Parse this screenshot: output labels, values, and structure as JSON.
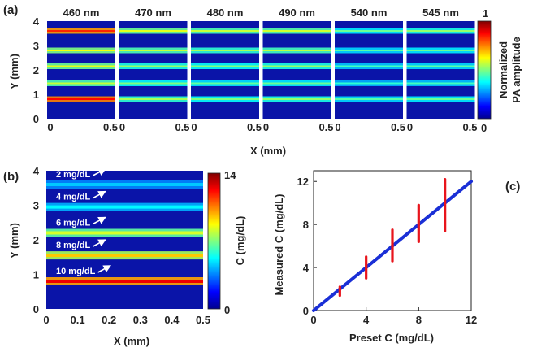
{
  "figure": {
    "panel_a": "(a)",
    "panel_b": "(b)",
    "panel_c": "(c)"
  },
  "chart_data": [
    {
      "type": "heatmap",
      "panel": "(a)",
      "wavelengths": [
        "460 nm",
        "470 nm",
        "480 nm",
        "490 nm",
        "540 nm",
        "545 nm"
      ],
      "xlabel": "X (mm)",
      "ylabel": "Y (mm)",
      "xlim": [
        0,
        0.5
      ],
      "ylim": [
        0,
        4
      ],
      "x_ticks": [
        "0",
        "0.5"
      ],
      "y_ticks": [
        "0",
        "1",
        "2",
        "3",
        "4"
      ],
      "colorbar": {
        "label_line1": "Normalized",
        "label_line2": "PA amplitude",
        "min": "0",
        "max": "1",
        "range": [
          0,
          1
        ]
      },
      "tube_positions_mm": [
        0.8,
        1.45,
        2.15,
        2.8,
        3.6
      ],
      "amplitudes": [
        [
          0.75,
          0.45,
          0.48,
          0.5,
          0.72
        ],
        [
          0.42,
          0.38,
          0.4,
          0.45,
          0.48
        ],
        [
          0.38,
          0.35,
          0.38,
          0.42,
          0.45
        ],
        [
          0.4,
          0.36,
          0.4,
          0.44,
          0.46
        ],
        [
          0.34,
          0.3,
          0.32,
          0.34,
          0.36
        ],
        [
          0.36,
          0.32,
          0.34,
          0.36,
          0.4
        ]
      ]
    },
    {
      "type": "heatmap",
      "panel": "(b)",
      "xlabel": "X (mm)",
      "ylabel": "Y (mm)",
      "xlim": [
        0,
        0.5
      ],
      "ylim": [
        0,
        4
      ],
      "x_ticks": [
        "0",
        "0.1",
        "0.2",
        "0.3",
        "0.4",
        "0.5"
      ],
      "y_ticks": [
        "0",
        "1",
        "2",
        "3",
        "4"
      ],
      "colorbar": {
        "label": "C (mg/dL)",
        "min": "0",
        "max": "14",
        "range": [
          0,
          14
        ]
      },
      "tubes": [
        {
          "label": "2 mg/dL",
          "y": 3.6,
          "value": 4.5
        },
        {
          "label": "4 mg/dL",
          "y": 2.95,
          "value": 5.2
        },
        {
          "label": "6 mg/dL",
          "y": 2.2,
          "value": 8.2
        },
        {
          "label": "8 mg/dL",
          "y": 1.55,
          "value": 9.5
        },
        {
          "label": "10 mg/dL",
          "y": 0.8,
          "value": 12.5
        }
      ]
    },
    {
      "type": "line",
      "panel": "(c)",
      "xlabel": "Preset C (mg/dL)",
      "ylabel": "Measured C (mg/dL)",
      "xlim": [
        0,
        12
      ],
      "ylim": [
        0,
        13
      ],
      "x_ticks": [
        "0",
        "4",
        "8",
        "12"
      ],
      "y_ticks": [
        "0",
        "4",
        "8",
        "12"
      ],
      "line": {
        "x": [
          0,
          12
        ],
        "y": [
          0,
          12
        ],
        "color": "#1a2fd6"
      },
      "error_bars": [
        {
          "x": 2,
          "low": 1.4,
          "high": 2.2
        },
        {
          "x": 4,
          "low": 3.0,
          "high": 5.0
        },
        {
          "x": 6,
          "low": 4.6,
          "high": 7.5
        },
        {
          "x": 8,
          "low": 6.4,
          "high": 9.8
        },
        {
          "x": 10,
          "low": 7.4,
          "high": 12.2
        }
      ],
      "error_color": "#e8141c"
    }
  ]
}
